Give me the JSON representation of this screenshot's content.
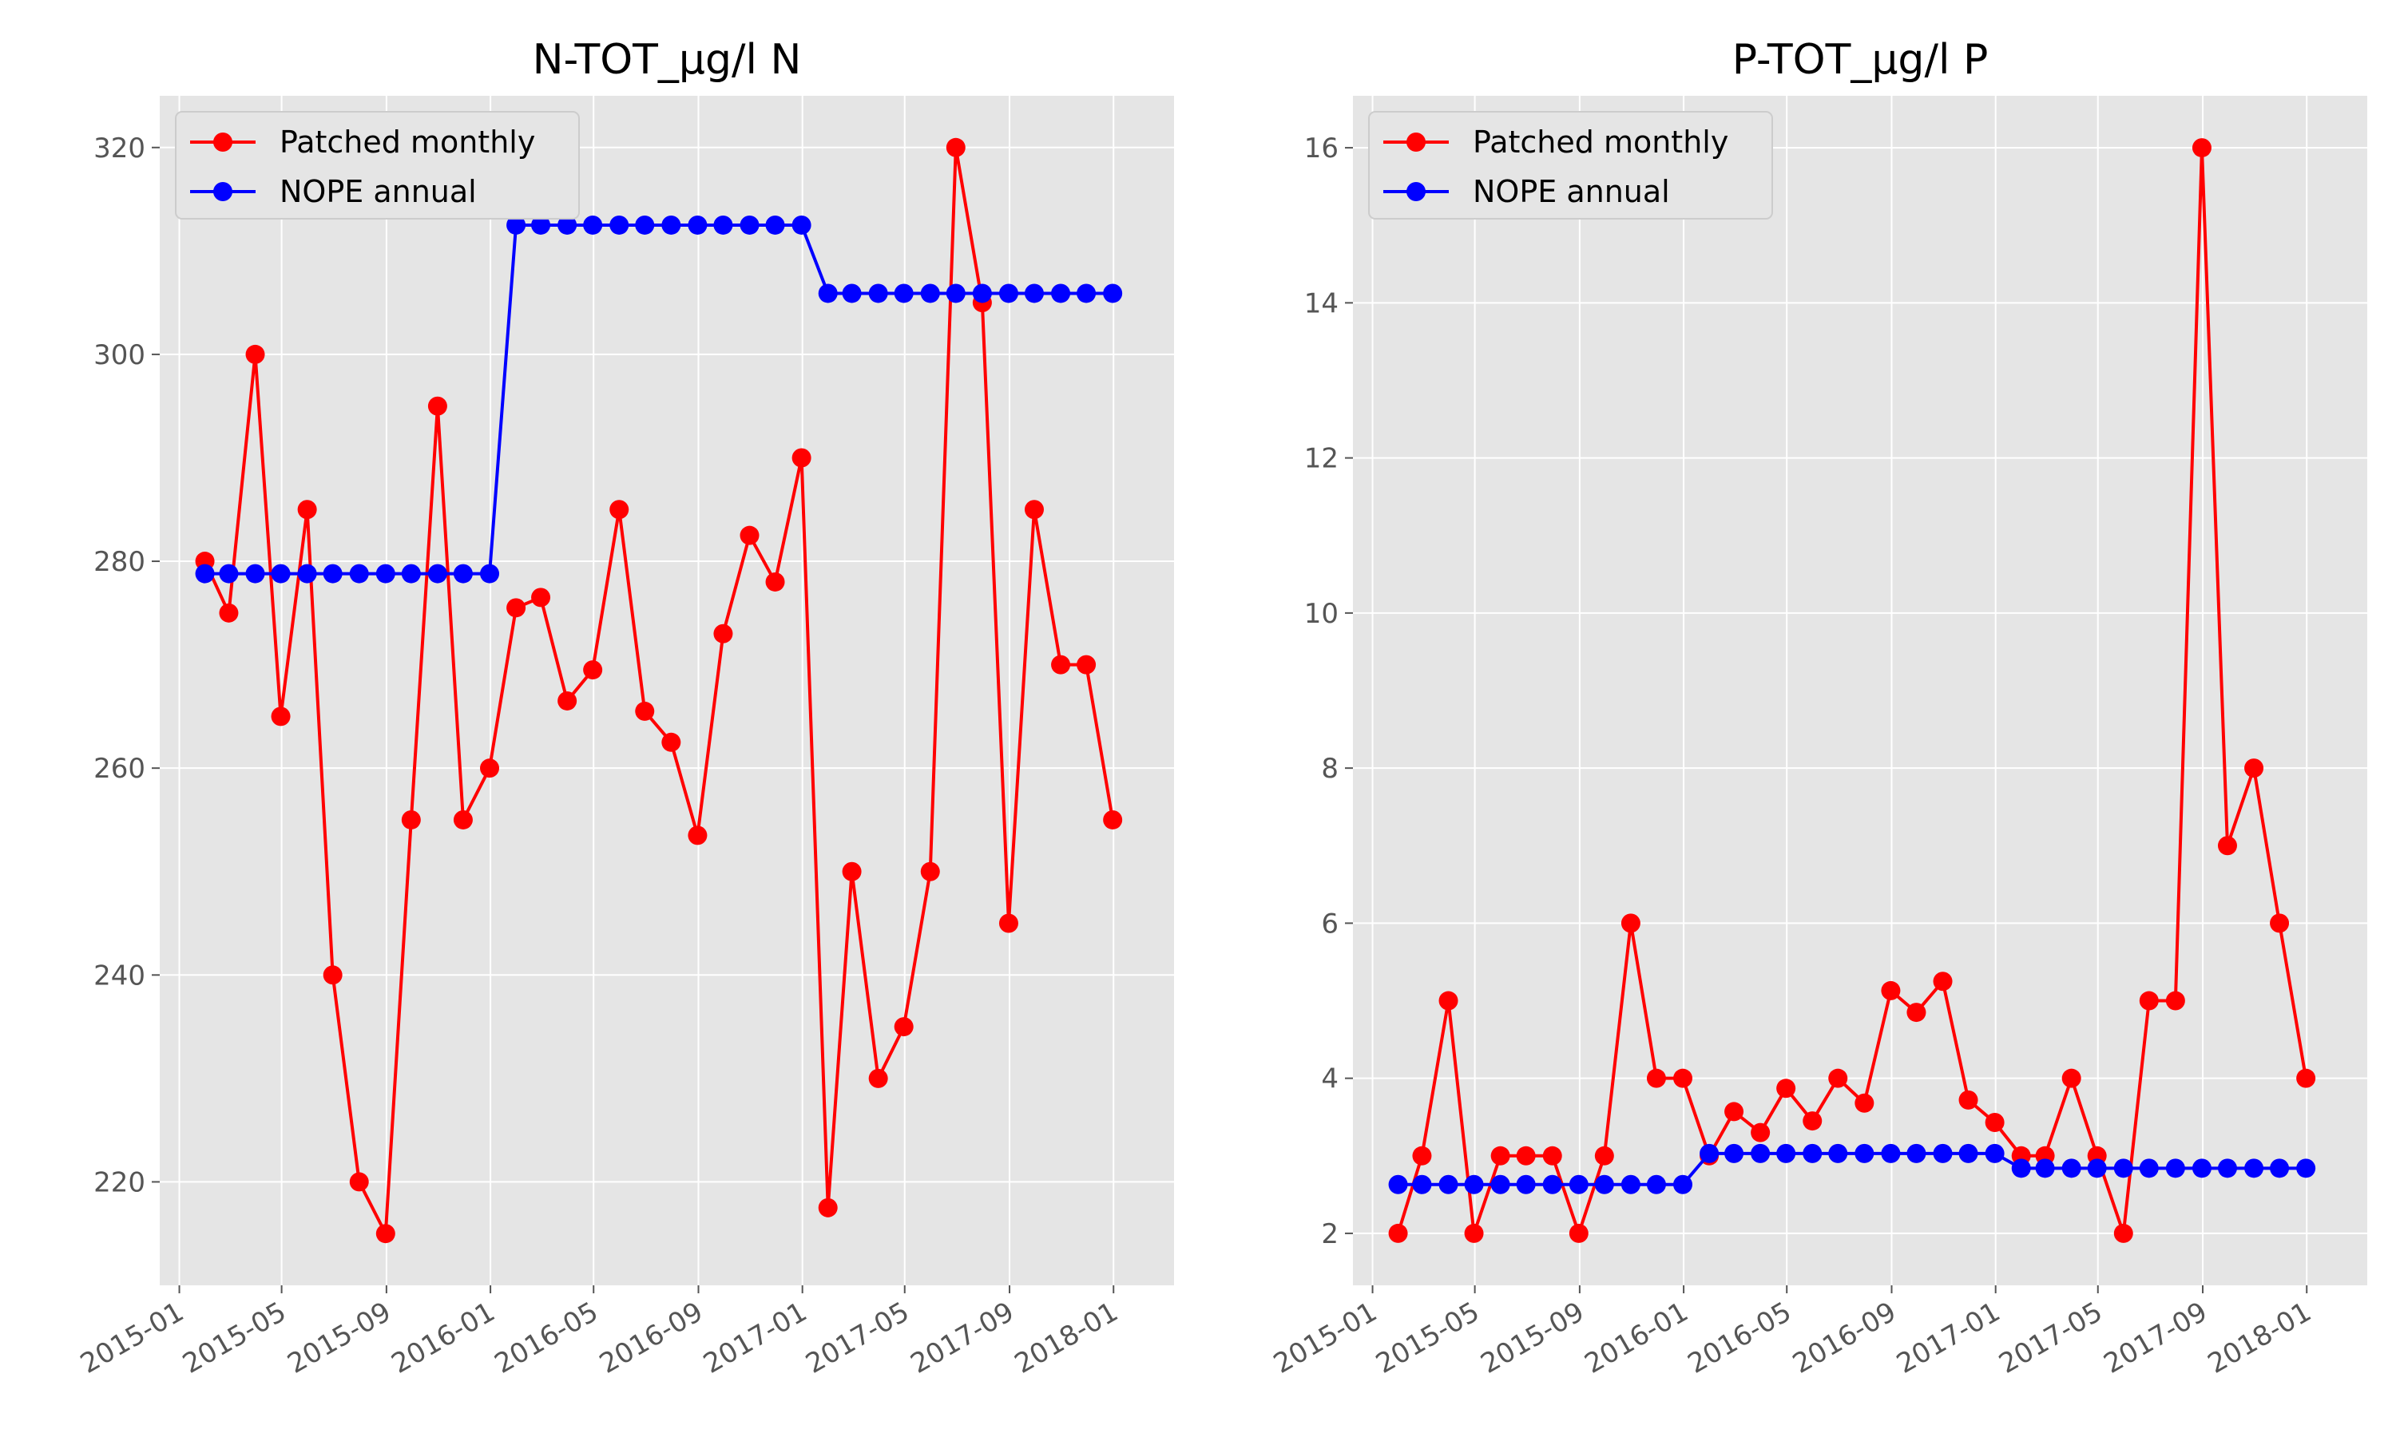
{
  "chart_data": [
    {
      "type": "line",
      "title": "N-TOT_µg/l N",
      "xlabel": "",
      "ylabel": "",
      "ylim": [
        210,
        325
      ],
      "xlim": [
        "2014-12-09",
        "2018-03-13"
      ],
      "yticks": [
        220,
        240,
        260,
        280,
        300,
        320
      ],
      "xticks": [
        "2015-01",
        "2015-05",
        "2015-09",
        "2016-01",
        "2016-05",
        "2016-09",
        "2017-01",
        "2017-05",
        "2017-09",
        "2018-01"
      ],
      "legend": {
        "position": "top-left"
      },
      "grid": true,
      "series": [
        {
          "name": "Patched monthly",
          "color": "#ff0000",
          "marker": "circle",
          "x": [
            "2015-01-31",
            "2015-02-28",
            "2015-03-31",
            "2015-04-30",
            "2015-05-31",
            "2015-06-30",
            "2015-07-31",
            "2015-08-31",
            "2015-09-30",
            "2015-10-31",
            "2015-11-30",
            "2015-12-31",
            "2016-01-31",
            "2016-02-29",
            "2016-03-31",
            "2016-04-30",
            "2016-05-31",
            "2016-06-30",
            "2016-07-31",
            "2016-08-31",
            "2016-09-30",
            "2016-10-31",
            "2016-11-30",
            "2016-12-31",
            "2017-01-31",
            "2017-02-28",
            "2017-03-31",
            "2017-04-30",
            "2017-05-31",
            "2017-06-30",
            "2017-07-31",
            "2017-08-31",
            "2017-09-30",
            "2017-10-31",
            "2017-11-30",
            "2017-12-31"
          ],
          "values": [
            280,
            275,
            300,
            265,
            285,
            240,
            220,
            215,
            255,
            295,
            255,
            260,
            275.5,
            276.5,
            266.5,
            269.5,
            285,
            265.5,
            262.5,
            253.5,
            273,
            282.5,
            278,
            290,
            217.5,
            250,
            230,
            235,
            250,
            320,
            305,
            245,
            285,
            270,
            270,
            255
          ]
        },
        {
          "name": "NOPE annual",
          "color": "#0000ff",
          "marker": "circle",
          "x": [
            "2015-01-31",
            "2015-02-28",
            "2015-03-31",
            "2015-04-30",
            "2015-05-31",
            "2015-06-30",
            "2015-07-31",
            "2015-08-31",
            "2015-09-30",
            "2015-10-31",
            "2015-11-30",
            "2015-12-31",
            "2016-01-31",
            "2016-02-29",
            "2016-03-31",
            "2016-04-30",
            "2016-05-31",
            "2016-06-30",
            "2016-07-31",
            "2016-08-31",
            "2016-09-30",
            "2016-10-31",
            "2016-11-30",
            "2016-12-31",
            "2017-01-31",
            "2017-02-28",
            "2017-03-31",
            "2017-04-30",
            "2017-05-31",
            "2017-06-30",
            "2017-07-31",
            "2017-08-31",
            "2017-09-30",
            "2017-10-31",
            "2017-11-30",
            "2017-12-31"
          ],
          "values": [
            278.8,
            278.8,
            278.8,
            278.8,
            278.8,
            278.8,
            278.8,
            278.8,
            278.8,
            278.8,
            278.8,
            278.8,
            312.5,
            312.5,
            312.5,
            312.5,
            312.5,
            312.5,
            312.5,
            312.5,
            312.5,
            312.5,
            312.5,
            312.5,
            305.9,
            305.9,
            305.9,
            305.9,
            305.9,
            305.9,
            305.9,
            305.9,
            305.9,
            305.9,
            305.9,
            305.9
          ]
        }
      ]
    },
    {
      "type": "line",
      "title": "P-TOT_µg/l P",
      "xlabel": "",
      "ylabel": "",
      "ylim": [
        1.33,
        16.67
      ],
      "xlim": [
        "2014-12-09",
        "2018-03-13"
      ],
      "yticks": [
        2,
        4,
        6,
        8,
        10,
        12,
        14,
        16
      ],
      "xticks": [
        "2015-01",
        "2015-05",
        "2015-09",
        "2016-01",
        "2016-05",
        "2016-09",
        "2017-01",
        "2017-05",
        "2017-09",
        "2018-01"
      ],
      "legend": {
        "position": "top-left"
      },
      "grid": true,
      "series": [
        {
          "name": "Patched monthly",
          "color": "#ff0000",
          "marker": "circle",
          "x": [
            "2015-01-31",
            "2015-02-28",
            "2015-03-31",
            "2015-04-30",
            "2015-05-31",
            "2015-06-30",
            "2015-07-31",
            "2015-08-31",
            "2015-09-30",
            "2015-10-31",
            "2015-11-30",
            "2015-12-31",
            "2016-01-31",
            "2016-02-29",
            "2016-03-31",
            "2016-04-30",
            "2016-05-31",
            "2016-06-30",
            "2016-07-31",
            "2016-08-31",
            "2016-09-30",
            "2016-10-31",
            "2016-11-30",
            "2016-12-31",
            "2017-01-31",
            "2017-02-28",
            "2017-03-31",
            "2017-04-30",
            "2017-05-31",
            "2017-06-30",
            "2017-07-31",
            "2017-08-31",
            "2017-09-30",
            "2017-10-31",
            "2017-11-30",
            "2017-12-31"
          ],
          "values": [
            2,
            3,
            5,
            2,
            3,
            3,
            3,
            2,
            3,
            6,
            4,
            4,
            3,
            3.57,
            3.3,
            3.87,
            3.45,
            4,
            3.68,
            5.13,
            4.85,
            5.25,
            3.72,
            3.43,
            3,
            3,
            4,
            3,
            2,
            5,
            5,
            16,
            7,
            8,
            6,
            4
          ]
        },
        {
          "name": "NOPE annual",
          "color": "#0000ff",
          "marker": "circle",
          "x": [
            "2015-01-31",
            "2015-02-28",
            "2015-03-31",
            "2015-04-30",
            "2015-05-31",
            "2015-06-30",
            "2015-07-31",
            "2015-08-31",
            "2015-09-30",
            "2015-10-31",
            "2015-11-30",
            "2015-12-31",
            "2016-01-31",
            "2016-02-29",
            "2016-03-31",
            "2016-04-30",
            "2016-05-31",
            "2016-06-30",
            "2016-07-31",
            "2016-08-31",
            "2016-09-30",
            "2016-10-31",
            "2016-11-30",
            "2016-12-31",
            "2017-01-31",
            "2017-02-28",
            "2017-03-31",
            "2017-04-30",
            "2017-05-31",
            "2017-06-30",
            "2017-07-31",
            "2017-08-31",
            "2017-09-30",
            "2017-10-31",
            "2017-11-30",
            "2017-12-31"
          ],
          "values": [
            2.63,
            2.63,
            2.63,
            2.63,
            2.63,
            2.63,
            2.63,
            2.63,
            2.63,
            2.63,
            2.63,
            2.63,
            3.03,
            3.03,
            3.03,
            3.03,
            3.03,
            3.03,
            3.03,
            3.03,
            3.03,
            3.03,
            3.03,
            3.03,
            2.84,
            2.84,
            2.84,
            2.84,
            2.84,
            2.84,
            2.84,
            2.84,
            2.84,
            2.84,
            2.84,
            2.84
          ]
        }
      ]
    }
  ]
}
